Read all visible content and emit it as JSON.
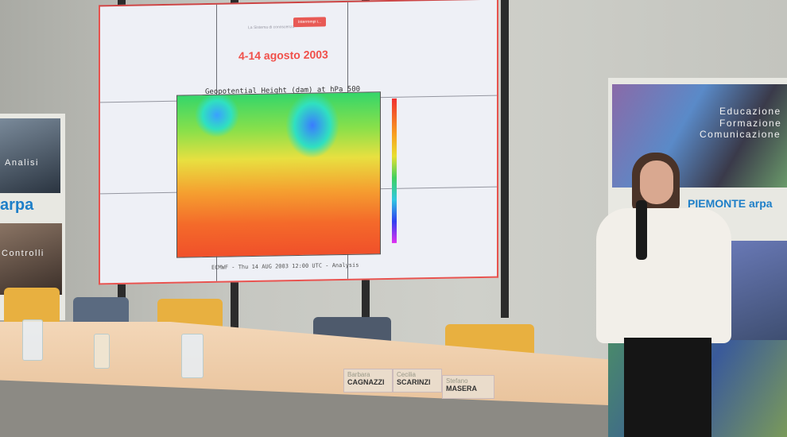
{
  "slide": {
    "top_text": "La Sistema di conoscenza",
    "top_button": "Interrompi i...",
    "title": "4-14 agosto 2003",
    "chart_title": "Geopotential Height (dam) at hPa 500",
    "caption": "ECMWF - Thu 14 AUG 2003 12:00 UTC - Analysis"
  },
  "right_banner": {
    "lines": [
      "Educazione",
      "Formazione",
      "Comunicazione"
    ],
    "logo": "PIEMONTE arpa"
  },
  "left_banner": {
    "lines": [
      "Analisi",
      "Controlli"
    ],
    "logo": "arpa"
  },
  "name_cards": [
    {
      "first": "Barbara",
      "last": "CAGNAZZI"
    },
    {
      "first": "Cecilia",
      "last": "SCARINZI"
    },
    {
      "first": "Stefano",
      "last": "MASERA"
    }
  ],
  "colors": {
    "slide_accent": "#f0504a",
    "table": "#eccaa6",
    "chair_yellow": "#e8b040",
    "chair_blue": "#5a6a80"
  }
}
